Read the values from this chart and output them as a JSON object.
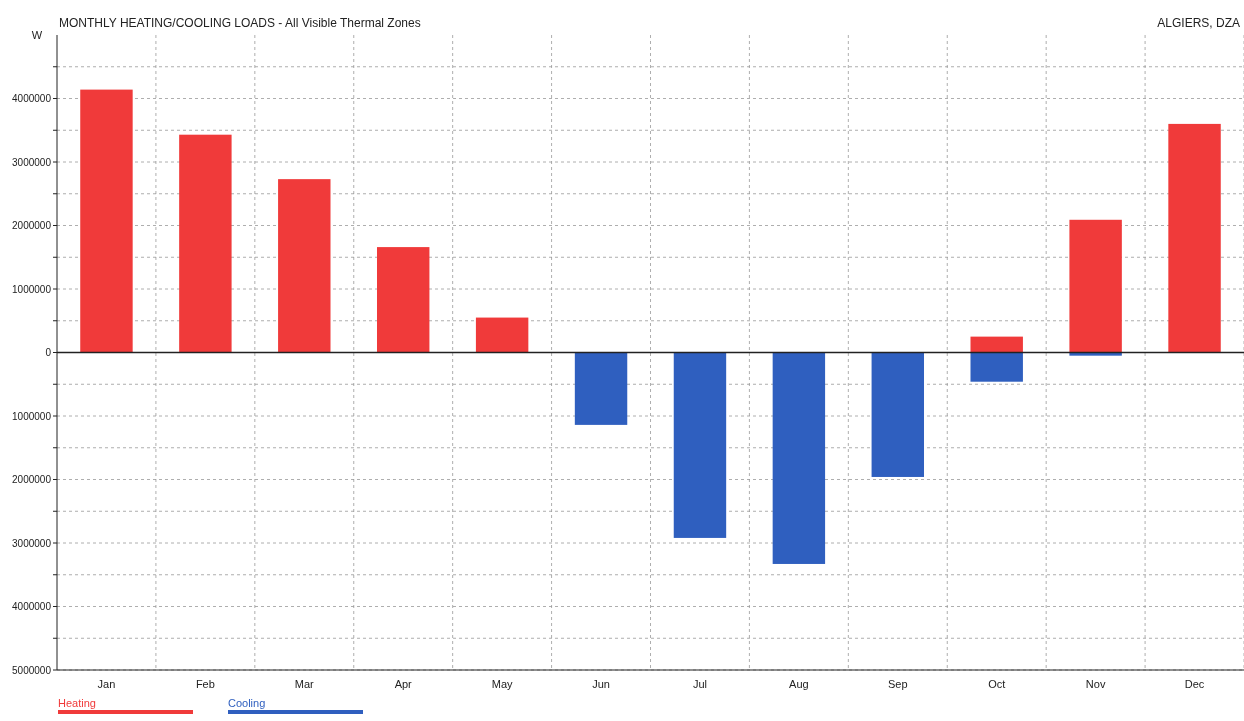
{
  "chart_data": {
    "type": "bar",
    "title": "MONTHLY HEATING/COOLING LOADS - All Visible Thermal Zones",
    "subtitle": "ALGIERS, DZA",
    "ylabel": "W",
    "categories": [
      "Jan",
      "Feb",
      "Mar",
      "Apr",
      "May",
      "Jun",
      "Jul",
      "Aug",
      "Sep",
      "Oct",
      "Nov",
      "Dec"
    ],
    "series": [
      {
        "name": "Heating",
        "color": "#f03a3a",
        "values": [
          4140000,
          3430000,
          2730000,
          1660000,
          550000,
          0,
          0,
          0,
          0,
          250000,
          2090000,
          3600000
        ]
      },
      {
        "name": "Cooling",
        "color": "#2f5fbf",
        "values": [
          0,
          0,
          0,
          0,
          0,
          -1140000,
          -2920000,
          -3330000,
          -1960000,
          -460000,
          -50000,
          0
        ]
      }
    ],
    "ylim": [
      -5000000,
      5000000
    ],
    "yticks": [
      {
        "value": -5000000,
        "label": "5000000"
      },
      {
        "value": -4500000,
        "label": null
      },
      {
        "value": -4000000,
        "label": "4000000"
      },
      {
        "value": -3500000,
        "label": null
      },
      {
        "value": -3000000,
        "label": "3000000"
      },
      {
        "value": -2500000,
        "label": null
      },
      {
        "value": -2000000,
        "label": "2000000"
      },
      {
        "value": -1500000,
        "label": null
      },
      {
        "value": -1000000,
        "label": "1000000"
      },
      {
        "value": -500000,
        "label": null
      },
      0,
      {
        "value": 500000,
        "label": null
      },
      1000000,
      {
        "value": 1500000,
        "label": null
      },
      2000000,
      {
        "value": 2500000,
        "label": null
      },
      3000000,
      {
        "value": 3500000,
        "label": null
      },
      4000000,
      {
        "value": 4500000,
        "label": null
      }
    ],
    "grid": true,
    "legend": "bottom left"
  }
}
